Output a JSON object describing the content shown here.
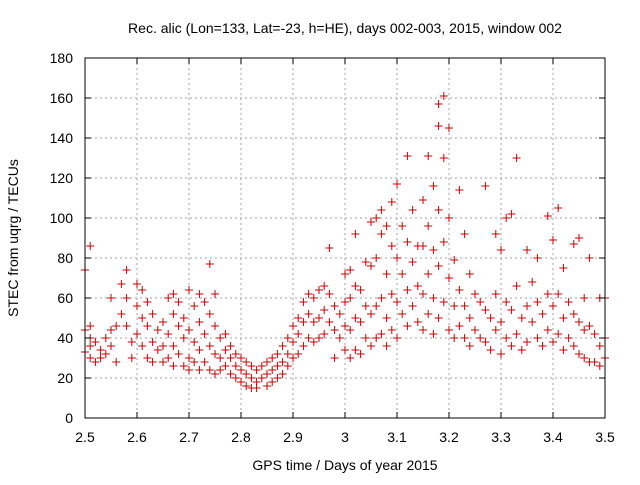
{
  "chart_data": {
    "type": "scatter",
    "title": "Rec. alic (Lon=133, Lat=-23, h=HE), days 002-003, 2015, window 002",
    "xlabel": "GPS time / Days of year 2015",
    "ylabel": "STEC from uqrg / TECUs",
    "xlim": [
      2.5,
      3.5
    ],
    "ylim": [
      0,
      180
    ],
    "x_ticks": [
      "2.5",
      "2.6",
      "2.7",
      "2.8",
      "2.9",
      "3",
      "3.1",
      "3.2",
      "3.3",
      "3.4",
      "3.5"
    ],
    "y_ticks": [
      "0",
      "20",
      "40",
      "60",
      "80",
      "100",
      "120",
      "140",
      "160",
      "180"
    ],
    "grid": true,
    "marker": "plus",
    "marker_color": "#cc0000",
    "series": [
      {
        "name": "STEC",
        "points": [
          [
            2.5,
            74
          ],
          [
            2.51,
            86
          ],
          [
            2.51,
            46
          ],
          [
            2.5,
            44
          ],
          [
            2.51,
            40
          ],
          [
            2.51,
            36
          ],
          [
            2.5,
            33
          ],
          [
            2.51,
            30
          ],
          [
            2.52,
            28
          ],
          [
            2.52,
            38
          ],
          [
            2.53,
            34
          ],
          [
            2.53,
            30
          ],
          [
            2.54,
            40
          ],
          [
            2.54,
            32
          ],
          [
            2.55,
            60
          ],
          [
            2.55,
            44
          ],
          [
            2.55,
            36
          ],
          [
            2.56,
            28
          ],
          [
            2.56,
            46
          ],
          [
            2.57,
            52
          ],
          [
            2.57,
            67
          ],
          [
            2.58,
            74
          ],
          [
            2.58,
            60
          ],
          [
            2.58,
            46
          ],
          [
            2.59,
            38
          ],
          [
            2.59,
            30
          ],
          [
            2.6,
            67
          ],
          [
            2.6,
            56
          ],
          [
            2.6,
            42
          ],
          [
            2.61,
            64
          ],
          [
            2.61,
            50
          ],
          [
            2.61,
            36
          ],
          [
            2.62,
            58
          ],
          [
            2.62,
            46
          ],
          [
            2.62,
            30
          ],
          [
            2.63,
            52
          ],
          [
            2.63,
            38
          ],
          [
            2.63,
            28
          ],
          [
            2.64,
            44
          ],
          [
            2.64,
            34
          ],
          [
            2.65,
            48
          ],
          [
            2.65,
            36
          ],
          [
            2.65,
            28
          ],
          [
            2.66,
            60
          ],
          [
            2.66,
            42
          ],
          [
            2.66,
            30
          ],
          [
            2.67,
            62
          ],
          [
            2.67,
            52
          ],
          [
            2.67,
            36
          ],
          [
            2.67,
            26
          ],
          [
            2.68,
            58
          ],
          [
            2.68,
            46
          ],
          [
            2.68,
            32
          ],
          [
            2.69,
            50
          ],
          [
            2.69,
            40
          ],
          [
            2.69,
            26
          ],
          [
            2.7,
            64
          ],
          [
            2.7,
            44
          ],
          [
            2.7,
            30
          ],
          [
            2.7,
            24
          ],
          [
            2.71,
            56
          ],
          [
            2.71,
            38
          ],
          [
            2.71,
            28
          ],
          [
            2.72,
            62
          ],
          [
            2.72,
            48
          ],
          [
            2.72,
            34
          ],
          [
            2.72,
            24
          ],
          [
            2.73,
            58
          ],
          [
            2.73,
            42
          ],
          [
            2.73,
            28
          ],
          [
            2.74,
            77
          ],
          [
            2.74,
            52
          ],
          [
            2.74,
            36
          ],
          [
            2.74,
            24
          ],
          [
            2.75,
            62
          ],
          [
            2.75,
            46
          ],
          [
            2.75,
            32
          ],
          [
            2.75,
            22
          ],
          [
            2.76,
            40
          ],
          [
            2.76,
            30
          ],
          [
            2.76,
            24
          ],
          [
            2.77,
            42
          ],
          [
            2.77,
            34
          ],
          [
            2.77,
            26
          ],
          [
            2.78,
            36
          ],
          [
            2.78,
            30
          ],
          [
            2.78,
            22
          ],
          [
            2.79,
            32
          ],
          [
            2.79,
            26
          ],
          [
            2.79,
            20
          ],
          [
            2.8,
            30
          ],
          [
            2.8,
            24
          ],
          [
            2.8,
            18
          ],
          [
            2.81,
            28
          ],
          [
            2.81,
            22
          ],
          [
            2.81,
            16
          ],
          [
            2.82,
            26
          ],
          [
            2.82,
            20
          ],
          [
            2.82,
            15
          ],
          [
            2.83,
            24
          ],
          [
            2.83,
            18
          ],
          [
            2.83,
            15
          ],
          [
            2.84,
            26
          ],
          [
            2.84,
            20
          ],
          [
            2.85,
            28
          ],
          [
            2.85,
            22
          ],
          [
            2.85,
            16
          ],
          [
            2.86,
            30
          ],
          [
            2.86,
            24
          ],
          [
            2.86,
            18
          ],
          [
            2.87,
            32
          ],
          [
            2.87,
            26
          ],
          [
            2.87,
            20
          ],
          [
            2.88,
            36
          ],
          [
            2.88,
            28
          ],
          [
            2.88,
            22
          ],
          [
            2.89,
            40
          ],
          [
            2.89,
            32
          ],
          [
            2.89,
            26
          ],
          [
            2.9,
            46
          ],
          [
            2.9,
            38
          ],
          [
            2.9,
            30
          ],
          [
            2.91,
            50
          ],
          [
            2.91,
            42
          ],
          [
            2.91,
            32
          ],
          [
            2.92,
            58
          ],
          [
            2.92,
            48
          ],
          [
            2.92,
            36
          ],
          [
            2.93,
            62
          ],
          [
            2.93,
            52
          ],
          [
            2.93,
            40
          ],
          [
            2.94,
            60
          ],
          [
            2.94,
            48
          ],
          [
            2.94,
            38
          ],
          [
            2.95,
            64
          ],
          [
            2.95,
            50
          ],
          [
            2.95,
            40
          ],
          [
            2.96,
            66
          ],
          [
            2.96,
            54
          ],
          [
            2.96,
            42
          ],
          [
            2.97,
            85
          ],
          [
            2.97,
            62
          ],
          [
            2.97,
            48
          ],
          [
            2.98,
            56
          ],
          [
            2.98,
            44
          ],
          [
            2.98,
            30
          ],
          [
            2.99,
            52
          ],
          [
            2.99,
            40
          ],
          [
            3.0,
            72
          ],
          [
            3.0,
            58
          ],
          [
            3.0,
            46
          ],
          [
            3.0,
            34
          ],
          [
            3.01,
            74
          ],
          [
            3.01,
            60
          ],
          [
            3.01,
            44
          ],
          [
            3.01,
            30
          ],
          [
            3.02,
            92
          ],
          [
            3.02,
            66
          ],
          [
            3.02,
            50
          ],
          [
            3.02,
            34
          ],
          [
            3.03,
            64
          ],
          [
            3.03,
            48
          ],
          [
            3.03,
            32
          ],
          [
            3.04,
            78
          ],
          [
            3.04,
            56
          ],
          [
            3.04,
            40
          ],
          [
            3.05,
            98
          ],
          [
            3.05,
            76
          ],
          [
            3.05,
            52
          ],
          [
            3.05,
            36
          ],
          [
            3.06,
            100
          ],
          [
            3.06,
            80
          ],
          [
            3.06,
            56
          ],
          [
            3.06,
            40
          ],
          [
            3.07,
            104
          ],
          [
            3.07,
            92
          ],
          [
            3.07,
            60
          ],
          [
            3.07,
            42
          ],
          [
            3.08,
            96
          ],
          [
            3.08,
            72
          ],
          [
            3.08,
            50
          ],
          [
            3.08,
            36
          ],
          [
            3.09,
            108
          ],
          [
            3.09,
            86
          ],
          [
            3.09,
            62
          ],
          [
            3.09,
            44
          ],
          [
            3.1,
            117
          ],
          [
            3.1,
            80
          ],
          [
            3.1,
            58
          ],
          [
            3.1,
            40
          ],
          [
            3.11,
            96
          ],
          [
            3.11,
            72
          ],
          [
            3.11,
            52
          ],
          [
            3.12,
            131
          ],
          [
            3.12,
            88
          ],
          [
            3.12,
            64
          ],
          [
            3.12,
            46
          ],
          [
            3.13,
            104
          ],
          [
            3.13,
            78
          ],
          [
            3.13,
            56
          ],
          [
            3.14,
            86
          ],
          [
            3.14,
            66
          ],
          [
            3.14,
            48
          ],
          [
            3.15,
            109
          ],
          [
            3.15,
            86
          ],
          [
            3.15,
            62
          ],
          [
            3.15,
            44
          ],
          [
            3.16,
            131
          ],
          [
            3.16,
            96
          ],
          [
            3.16,
            72
          ],
          [
            3.16,
            52
          ],
          [
            3.17,
            116
          ],
          [
            3.17,
            84
          ],
          [
            3.17,
            60
          ],
          [
            3.17,
            42
          ],
          [
            3.18,
            157
          ],
          [
            3.18,
            146
          ],
          [
            3.18,
            104
          ],
          [
            3.18,
            76
          ],
          [
            3.18,
            50
          ],
          [
            3.19,
            161
          ],
          [
            3.19,
            130
          ],
          [
            3.19,
            88
          ],
          [
            3.19,
            58
          ],
          [
            3.2,
            145
          ],
          [
            3.2,
            100
          ],
          [
            3.2,
            70
          ],
          [
            3.2,
            44
          ],
          [
            3.21,
            79
          ],
          [
            3.21,
            56
          ],
          [
            3.21,
            40
          ],
          [
            3.22,
            114
          ],
          [
            3.22,
            64
          ],
          [
            3.22,
            46
          ],
          [
            3.23,
            92
          ],
          [
            3.23,
            56
          ],
          [
            3.23,
            40
          ],
          [
            3.24,
            72
          ],
          [
            3.24,
            50
          ],
          [
            3.24,
            36
          ],
          [
            3.25,
            62
          ],
          [
            3.25,
            44
          ],
          [
            3.26,
            58
          ],
          [
            3.26,
            40
          ],
          [
            3.27,
            116
          ],
          [
            3.27,
            54
          ],
          [
            3.27,
            38
          ],
          [
            3.28,
            50
          ],
          [
            3.28,
            34
          ],
          [
            3.29,
            92
          ],
          [
            3.29,
            62
          ],
          [
            3.29,
            44
          ],
          [
            3.3,
            84
          ],
          [
            3.3,
            48
          ],
          [
            3.3,
            32
          ],
          [
            3.31,
            100
          ],
          [
            3.31,
            58
          ],
          [
            3.31,
            40
          ],
          [
            3.32,
            102
          ],
          [
            3.32,
            54
          ],
          [
            3.32,
            36
          ],
          [
            3.33,
            130
          ],
          [
            3.33,
            66
          ],
          [
            3.33,
            42
          ],
          [
            3.34,
            50
          ],
          [
            3.34,
            34
          ],
          [
            3.35,
            84
          ],
          [
            3.35,
            56
          ],
          [
            3.35,
            38
          ],
          [
            3.36,
            68
          ],
          [
            3.36,
            48
          ],
          [
            3.37,
            80
          ],
          [
            3.37,
            58
          ],
          [
            3.37,
            40
          ],
          [
            3.38,
            52
          ],
          [
            3.38,
            36
          ],
          [
            3.39,
            101
          ],
          [
            3.39,
            62
          ],
          [
            3.39,
            44
          ],
          [
            3.4,
            89
          ],
          [
            3.4,
            56
          ],
          [
            3.4,
            38
          ],
          [
            3.41,
            105
          ],
          [
            3.41,
            62
          ],
          [
            3.41,
            42
          ],
          [
            3.42,
            75
          ],
          [
            3.42,
            50
          ],
          [
            3.42,
            34
          ],
          [
            3.43,
            58
          ],
          [
            3.43,
            40
          ],
          [
            3.44,
            87
          ],
          [
            3.44,
            52
          ],
          [
            3.44,
            36
          ],
          [
            3.45,
            90
          ],
          [
            3.45,
            48
          ],
          [
            3.45,
            32
          ],
          [
            3.46,
            60
          ],
          [
            3.46,
            44
          ],
          [
            3.46,
            30
          ],
          [
            3.47,
            80
          ],
          [
            3.47,
            46
          ],
          [
            3.47,
            28
          ],
          [
            3.48,
            42
          ],
          [
            3.48,
            28
          ],
          [
            3.49,
            60
          ],
          [
            3.49,
            36
          ],
          [
            3.49,
            26
          ],
          [
            3.5,
            60
          ],
          [
            3.5,
            40
          ],
          [
            3.5,
            30
          ]
        ]
      }
    ]
  }
}
